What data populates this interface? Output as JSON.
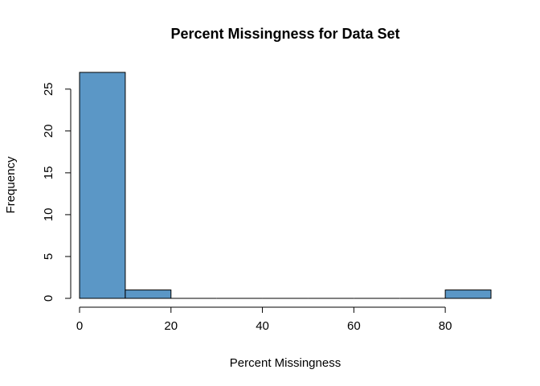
{
  "chart_data": {
    "type": "bar",
    "title": "Percent Missingness for Data Set",
    "xlabel": "Percent Missingness",
    "ylabel": "Frequency",
    "bins": [
      {
        "from": 0,
        "to": 10,
        "count": 27
      },
      {
        "from": 10,
        "to": 20,
        "count": 1
      },
      {
        "from": 20,
        "to": 30,
        "count": 0
      },
      {
        "from": 30,
        "to": 40,
        "count": 0
      },
      {
        "from": 40,
        "to": 50,
        "count": 0
      },
      {
        "from": 50,
        "to": 60,
        "count": 0
      },
      {
        "from": 60,
        "to": 70,
        "count": 0
      },
      {
        "from": 70,
        "to": 80,
        "count": 0
      },
      {
        "from": 80,
        "to": 90,
        "count": 1
      }
    ],
    "xlim": [
      0,
      90
    ],
    "ylim": [
      0,
      27
    ],
    "x_ticks": [
      0,
      20,
      40,
      60,
      80
    ],
    "y_ticks": [
      0,
      5,
      10,
      15,
      20,
      25
    ],
    "grid": false,
    "bar_color": "#5b97c6",
    "edge_color": "#000000"
  }
}
